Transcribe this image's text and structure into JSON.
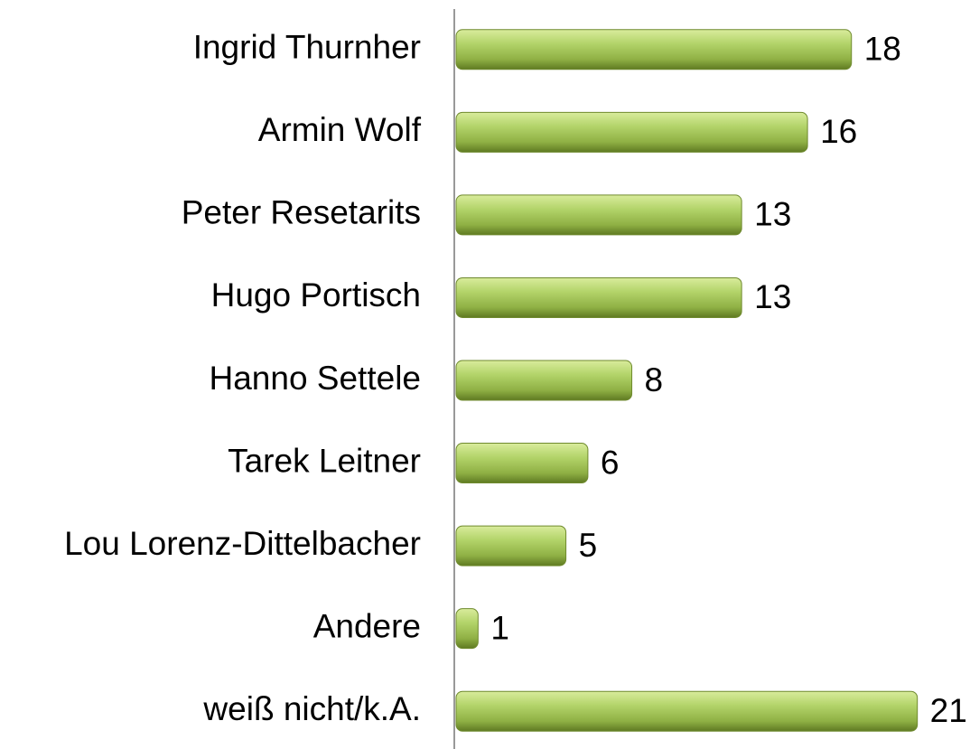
{
  "chart_data": {
    "type": "bar",
    "orientation": "horizontal",
    "categories": [
      "Ingrid Thurnher",
      "Armin Wolf",
      "Peter Resetarits",
      "Hugo Portisch",
      "Hanno Settele",
      "Tarek Leitner",
      "Lou Lorenz-Dittelbacher",
      "Andere ",
      "weiß nicht/k.A."
    ],
    "values": [
      18,
      16,
      13,
      13,
      8,
      6,
      5,
      1,
      21
    ],
    "color": "#9bbb59",
    "xlim": [
      0,
      22
    ]
  }
}
